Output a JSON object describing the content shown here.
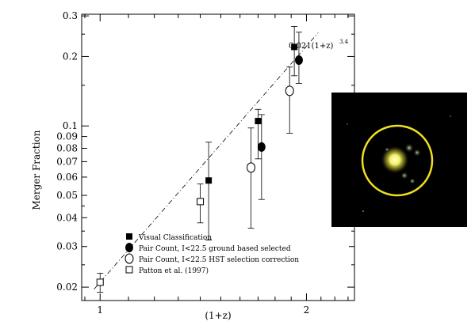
{
  "chart_data": {
    "type": "scatter",
    "xlabel": "(1+z)",
    "ylabel": "Merger Fraction",
    "x_scale": "log",
    "y_scale": "log",
    "xlim": [
      0.94,
      2.35
    ],
    "ylim": [
      0.0175,
      0.305
    ],
    "x_ticks": [
      {
        "value": 1,
        "label": "1"
      },
      {
        "value": 2,
        "label": "2"
      }
    ],
    "y_ticks": [
      {
        "value": 0.02,
        "label": "0.02"
      },
      {
        "value": 0.03,
        "label": "0.03"
      },
      {
        "value": 0.04,
        "label": "0.04"
      },
      {
        "value": 0.05,
        "label": "0.05"
      },
      {
        "value": 0.06,
        "label": "0.06"
      },
      {
        "value": 0.07,
        "label": "0.07"
      },
      {
        "value": 0.08,
        "label": "0.08"
      },
      {
        "value": 0.09,
        "label": "0.09"
      },
      {
        "value": 0.1,
        "label": "0.1"
      },
      {
        "value": 0.2,
        "label": "0.2"
      },
      {
        "value": 0.3,
        "label": "0.3"
      }
    ],
    "fit": {
      "label": "0.021(1+z)",
      "exponent": "3.4",
      "coefficient": 0.021,
      "power": 3.4,
      "x_range": [
        0.98,
        2.08
      ]
    },
    "series": [
      {
        "name": "Visual Classification",
        "marker": "filled-square",
        "points": [
          {
            "x": 1.44,
            "y": 0.058,
            "ylo": 0.032,
            "yhi": 0.085
          },
          {
            "x": 1.7,
            "y": 0.105,
            "ylo": 0.072,
            "yhi": 0.118
          },
          {
            "x": 1.92,
            "y": 0.22,
            "ylo": 0.165,
            "yhi": 0.27
          }
        ]
      },
      {
        "name": "Pair Count, I<22.5 ground based selected",
        "marker": "filled-circle",
        "points": [
          {
            "x": 1.72,
            "y": 0.081,
            "ylo": 0.048,
            "yhi": 0.112
          },
          {
            "x": 1.95,
            "y": 0.193,
            "ylo": 0.153,
            "yhi": 0.255
          }
        ]
      },
      {
        "name": "Pair Count, I<22.5 HST selection correction",
        "marker": "open-circle",
        "points": [
          {
            "x": 1.66,
            "y": 0.066,
            "ylo": 0.036,
            "yhi": 0.098
          },
          {
            "x": 1.89,
            "y": 0.142,
            "ylo": 0.093,
            "yhi": 0.18
          }
        ]
      },
      {
        "name": "Patton et al. (1997)",
        "marker": "open-square",
        "points": [
          {
            "x": 1.0,
            "y": 0.021,
            "ylo": 0.019,
            "yhi": 0.023
          },
          {
            "x": 1.4,
            "y": 0.047,
            "ylo": 0.038,
            "yhi": 0.056
          }
        ]
      }
    ],
    "legend_position": "bottom-left",
    "grid": false
  },
  "inset": {
    "background": "#000000",
    "circle_color": "#f0e020",
    "description_icon": "galaxy-image"
  }
}
